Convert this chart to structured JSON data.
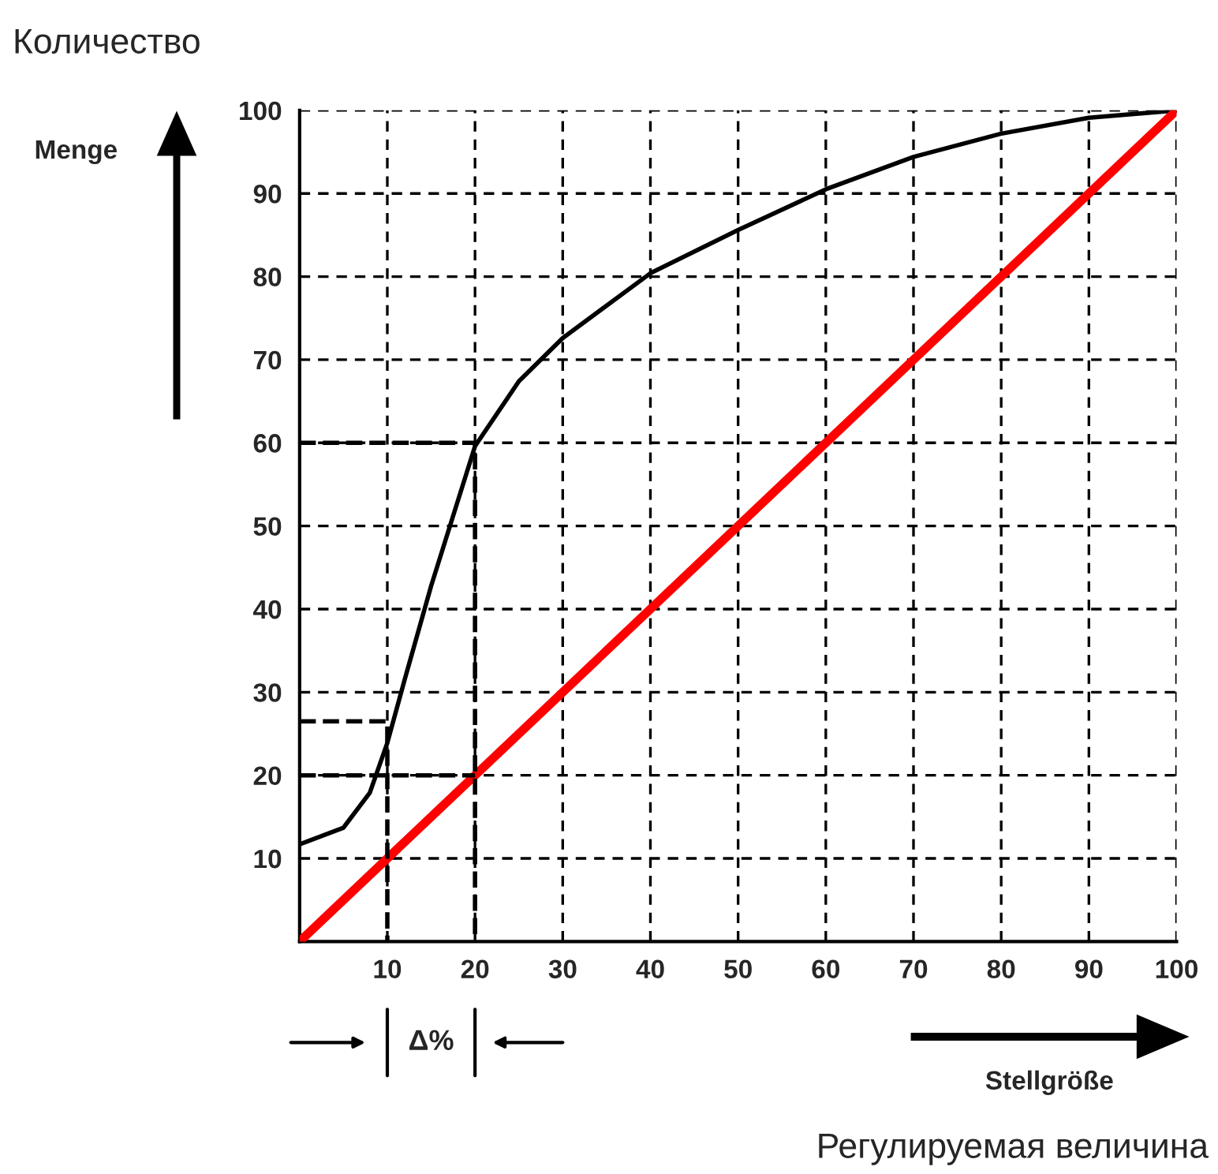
{
  "chart_data": {
    "type": "line",
    "xlabel": "Stellgröße",
    "ylabel": "Menge",
    "annotations": [
      "Количество",
      "Регулируемая величина",
      "Δ%"
    ],
    "xlim": [
      0,
      100
    ],
    "ylim": [
      0,
      100
    ],
    "xticks": [
      10,
      20,
      30,
      40,
      50,
      60,
      70,
      80,
      90,
      100
    ],
    "yticks": [
      10,
      20,
      30,
      40,
      50,
      60,
      70,
      80,
      90,
      100
    ],
    "grid": true,
    "marker": "none",
    "series": [
      {
        "color": "#000000",
        "line_style": "solid",
        "x": [
          0,
          5,
          8,
          10,
          12,
          15,
          20,
          25,
          30,
          40,
          50,
          60,
          70,
          80,
          90,
          100
        ],
        "values": [
          11.7,
          13.7,
          17.9,
          23.9,
          31.6,
          42.8,
          59.6,
          67.4,
          72.6,
          80.4,
          85.6,
          90.5,
          94.4,
          97.2,
          99.1,
          100
        ]
      },
      {
        "color": "#ff0000",
        "line_style": "solid",
        "x": [
          0,
          100
        ],
        "values": [
          0,
          100
        ]
      },
      {
        "color": "#000000",
        "line_style": "dashed",
        "x": [
          0,
          10,
          10
        ],
        "values": [
          26.5,
          26.5,
          0
        ]
      },
      {
        "color": "#000000",
        "line_style": "dashed",
        "x": [
          0,
          20,
          20
        ],
        "values": [
          60,
          60,
          0
        ]
      },
      {
        "color": "#000000",
        "line_style": "dashed",
        "x": [
          0,
          20
        ],
        "values": [
          20,
          20
        ]
      }
    ]
  }
}
